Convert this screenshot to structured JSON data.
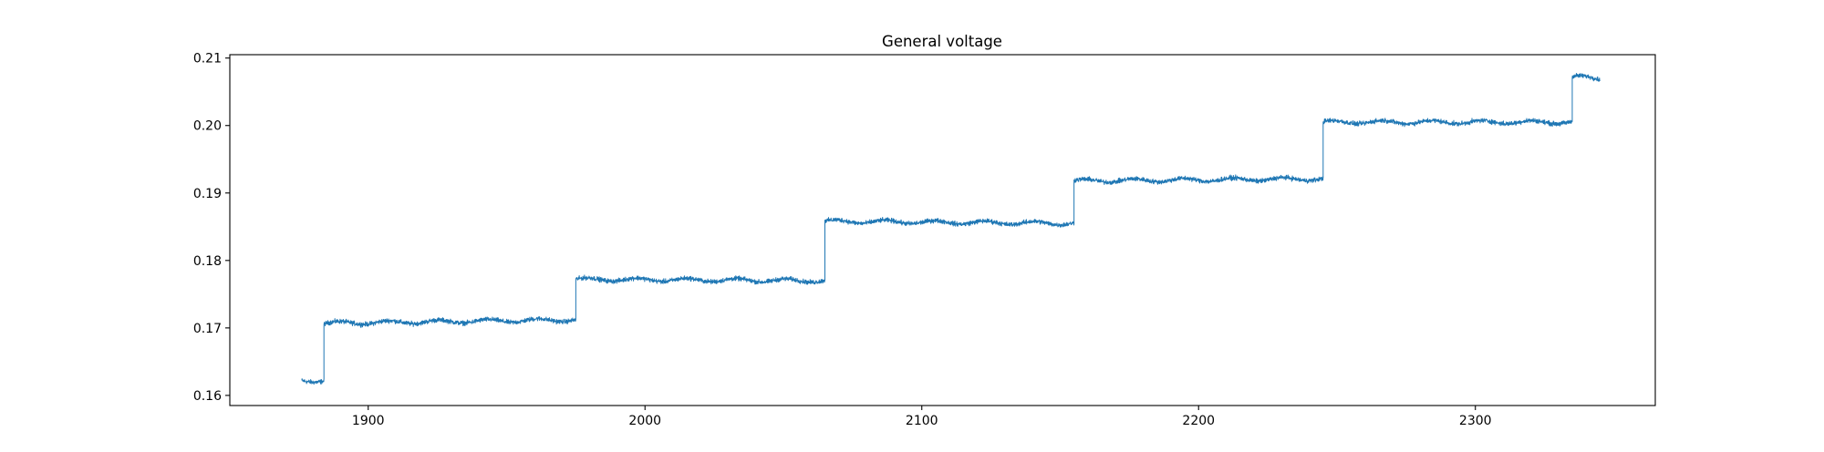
{
  "chart_data": {
    "type": "line",
    "title": "General voltage",
    "xlabel": "",
    "ylabel": "",
    "xlim": [
      1850,
      2365
    ],
    "ylim": [
      0.1585,
      0.2105
    ],
    "xticks": [
      1900,
      2000,
      2100,
      2200,
      2300
    ],
    "xtick_labels": [
      "1900",
      "2000",
      "2100",
      "2200",
      "2300"
    ],
    "yticks": [
      0.16,
      0.17,
      0.18,
      0.19,
      0.2,
      0.21
    ],
    "ytick_labels": [
      "0.16",
      "0.17",
      "0.18",
      "0.19",
      "0.20",
      "0.21"
    ],
    "grid": false,
    "legend": "none",
    "series": [
      {
        "color": "#1f77b4",
        "noise_amplitude": 0.0005,
        "segments": [
          {
            "x_start": 1876,
            "x_end": 1884,
            "level_start": 0.1622,
            "level_end": 0.1622
          },
          {
            "x_start": 1884,
            "x_end": 1975,
            "level_start": 0.1707,
            "level_end": 0.1712
          },
          {
            "x_start": 1975,
            "x_end": 2065,
            "level_start": 0.1772,
            "level_end": 0.177
          },
          {
            "x_start": 2065,
            "x_end": 2155,
            "level_start": 0.1858,
            "level_end": 0.1855
          },
          {
            "x_start": 2155,
            "x_end": 2245,
            "level_start": 0.1918,
            "level_end": 0.1921
          },
          {
            "x_start": 2245,
            "x_end": 2335,
            "level_start": 0.2005,
            "level_end": 0.2005
          },
          {
            "x_start": 2335,
            "x_end": 2345,
            "level_start": 0.2072,
            "level_end": 0.207
          }
        ]
      }
    ]
  }
}
